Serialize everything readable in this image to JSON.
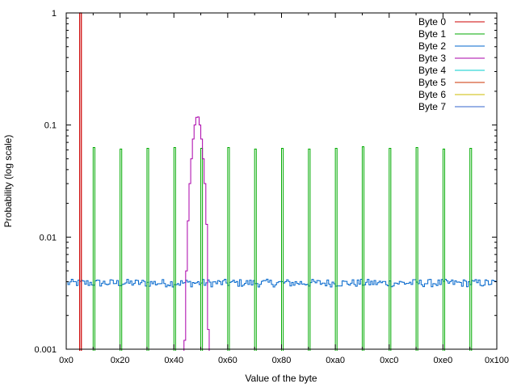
{
  "chart_data": {
    "type": "line",
    "xlabel": "Value of the byte",
    "ylabel": "Probability (log scale)",
    "xlim": [
      0,
      256
    ],
    "ylim": [
      0.001,
      1
    ],
    "yscale": "log",
    "grid": false,
    "legend_position": "top-right",
    "x_ticks": [
      {
        "value": 0,
        "label": "0x0"
      },
      {
        "value": 32,
        "label": "0x20"
      },
      {
        "value": 64,
        "label": "0x40"
      },
      {
        "value": 96,
        "label": "0x60"
      },
      {
        "value": 128,
        "label": "0x80"
      },
      {
        "value": 160,
        "label": "0xa0"
      },
      {
        "value": 192,
        "label": "0xc0"
      },
      {
        "value": 224,
        "label": "0xe0"
      },
      {
        "value": 256,
        "label": "0x100"
      }
    ],
    "y_ticks": [
      {
        "value": 1,
        "label": "1"
      },
      {
        "value": 0.1,
        "label": "0.1"
      },
      {
        "value": 0.01,
        "label": "0.01"
      },
      {
        "value": 0.001,
        "label": "0.001"
      }
    ],
    "series": [
      {
        "name": "Byte 0",
        "color": "#cc0000",
        "peaks": [
          {
            "x": 8,
            "y": 1.0
          }
        ]
      },
      {
        "name": "Byte 1",
        "color": "#00aa00",
        "peaks": [
          {
            "x": 16,
            "y": 0.063
          },
          {
            "x": 32,
            "y": 0.061
          },
          {
            "x": 48,
            "y": 0.062
          },
          {
            "x": 64,
            "y": 0.063
          },
          {
            "x": 80,
            "y": 0.062
          },
          {
            "x": 96,
            "y": 0.063
          },
          {
            "x": 112,
            "y": 0.061
          },
          {
            "x": 128,
            "y": 0.062
          },
          {
            "x": 144,
            "y": 0.061
          },
          {
            "x": 160,
            "y": 0.062
          },
          {
            "x": 176,
            "y": 0.064
          },
          {
            "x": 192,
            "y": 0.062
          },
          {
            "x": 208,
            "y": 0.063
          },
          {
            "x": 224,
            "y": 0.061
          },
          {
            "x": 240,
            "y": 0.062
          }
        ]
      },
      {
        "name": "Byte 2",
        "color": "#0066cc",
        "level": 0.0039
      },
      {
        "name": "Byte 3",
        "color": "#aa00aa",
        "bins": [
          {
            "x": 70,
            "y": 0.0012
          },
          {
            "x": 71,
            "y": 0.005
          },
          {
            "x": 72,
            "y": 0.014
          },
          {
            "x": 73,
            "y": 0.03
          },
          {
            "x": 74,
            "y": 0.05
          },
          {
            "x": 75,
            "y": 0.075
          },
          {
            "x": 76,
            "y": 0.1
          },
          {
            "x": 77,
            "y": 0.117
          },
          {
            "x": 78,
            "y": 0.118
          },
          {
            "x": 79,
            "y": 0.1
          },
          {
            "x": 80,
            "y": 0.075
          },
          {
            "x": 81,
            "y": 0.05
          },
          {
            "x": 82,
            "y": 0.03
          },
          {
            "x": 83,
            "y": 0.013
          },
          {
            "x": 84,
            "y": 0.0015
          }
        ]
      },
      {
        "name": "Byte 4",
        "color": "#00cccc"
      },
      {
        "name": "Byte 5",
        "color": "#cc3300"
      },
      {
        "name": "Byte 6",
        "color": "#ccbb00"
      },
      {
        "name": "Byte 7",
        "color": "#3366cc"
      }
    ]
  }
}
